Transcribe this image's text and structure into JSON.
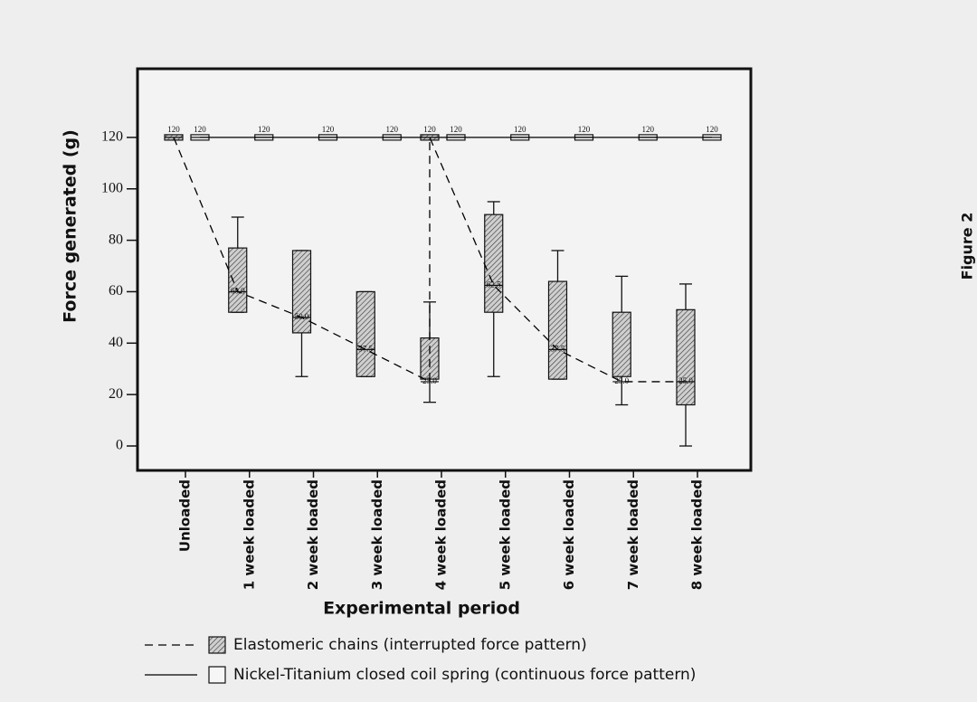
{
  "chart_data": {
    "type": "box",
    "side_label": "Figure 2",
    "y_label": "Force generated (g)",
    "x_label": "Experimental period",
    "categories": [
      "Unloaded",
      "1 week loaded",
      "2 week loaded",
      "3 week loaded",
      "4 week loaded",
      "5 week loaded",
      "6 week loaded",
      "7 week loaded",
      "8 week loaded"
    ],
    "ylim": [
      -9.5,
      146.7
    ],
    "yticks": [
      0,
      20,
      40,
      60,
      80,
      100,
      120
    ],
    "series": [
      {
        "name": "Elastomeric chains (interrupted force pattern)",
        "color": "#000000",
        "line_style": "dashed",
        "fill": "hatch",
        "max": [
          120,
          89,
          76,
          60,
          56,
          95,
          76,
          66,
          63
        ],
        "q3": [
          120,
          77,
          76,
          60,
          42,
          90,
          64,
          52,
          53
        ],
        "median": [
          120,
          60,
          50,
          37.5,
          25,
          62.5,
          37.5,
          25,
          25
        ],
        "median_labels": [
          "120",
          "60.0",
          "50.0",
          "37.5",
          "25.0",
          "62.5",
          "37.5",
          "25.0",
          "25.0"
        ],
        "q1": [
          120,
          52,
          44,
          27,
          26,
          52,
          26,
          27,
          16
        ],
        "min": [
          120,
          52,
          27,
          27,
          17,
          27,
          26,
          16,
          0
        ],
        "reload": {
          "category": "4 week loaded",
          "value": 120,
          "label": "120"
        }
      },
      {
        "name": "Nickel-Titanium closed coil spring (continuous force pattern)",
        "color": "#000000",
        "line_style": "solid",
        "fill": "none",
        "max": [
          120,
          120,
          120,
          120,
          120,
          120,
          120,
          120,
          120
        ],
        "q3": [
          120,
          120,
          120,
          120,
          120,
          120,
          120,
          120,
          120
        ],
        "median": [
          120,
          120,
          120,
          120,
          120,
          120,
          120,
          120,
          120
        ],
        "median_labels": [
          "120",
          "120",
          "120",
          "120",
          "120",
          "120",
          "120",
          "120",
          "120"
        ],
        "q1": [
          120,
          120,
          120,
          120,
          120,
          120,
          120,
          120,
          120
        ],
        "min": [
          120,
          120,
          120,
          120,
          120,
          120,
          120,
          120,
          120
        ]
      }
    ]
  }
}
